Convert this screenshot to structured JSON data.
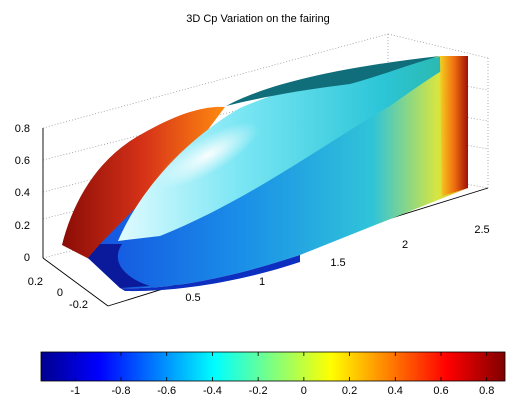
{
  "chart_data": {
    "type": "surface",
    "title": "3D Cp Variation on the fairing",
    "xlabel": "",
    "ylabel": "",
    "zlabel": "",
    "x_axis": {
      "ticks": [
        "0.5",
        "1",
        "1.5",
        "2",
        "2.5"
      ],
      "range": [
        0,
        2.8
      ]
    },
    "y_axis": {
      "ticks": [
        "0.2",
        "0",
        "-0.2"
      ],
      "range": [
        -0.3,
        0.3
      ]
    },
    "z_axis": {
      "ticks": [
        "0",
        "0.2",
        "0.4",
        "0.6",
        "0.8"
      ],
      "range": [
        0,
        0.8
      ]
    },
    "grid": true,
    "colormap": "jet",
    "colorbar": {
      "position": "bottom",
      "ticks": [
        "-1",
        "-0.8",
        "-0.6",
        "-0.4",
        "-0.2",
        "0",
        "0.2",
        "0.4",
        "0.6",
        "0.8"
      ],
      "range": [
        -1.15,
        0.88
      ]
    }
  }
}
